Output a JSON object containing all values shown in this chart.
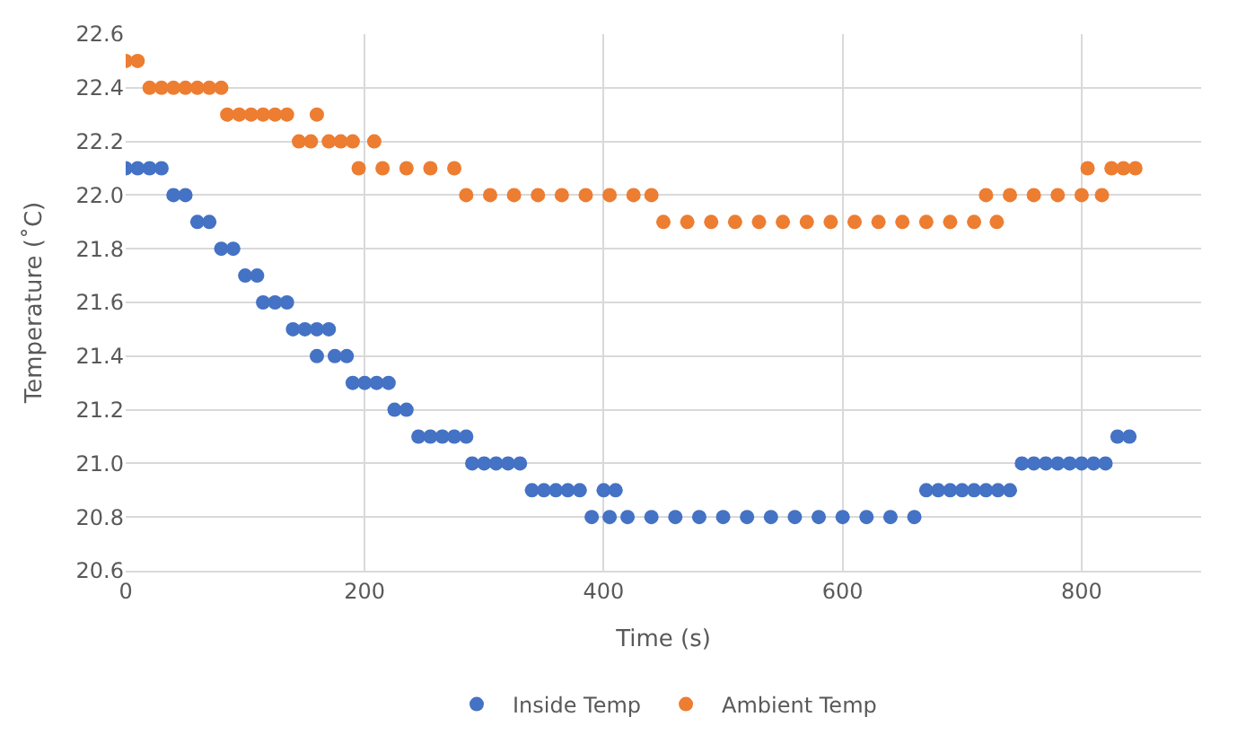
{
  "chart_data": {
    "type": "scatter",
    "xlabel": "Time (s)",
    "ylabel": "Temperature (˚C)",
    "xlim": [
      0,
      900
    ],
    "xticks": [
      0,
      200,
      400,
      600,
      800
    ],
    "ylim": [
      20.6,
      22.6
    ],
    "yticks": [
      20.6,
      20.8,
      {
        "value": 21,
        "label": "21.0"
      },
      21.2,
      21.4,
      21.6,
      21.8,
      {
        "value": 22,
        "label": "22.0"
      },
      22.2,
      22.4,
      22.6
    ],
    "grid": true,
    "legend": "bottom",
    "marker": "circle",
    "series": [
      {
        "name": "Inside Temp",
        "color": "#4472c4",
        "x": [
          0,
          10,
          20,
          30,
          40,
          50,
          60,
          70,
          80,
          90,
          100,
          110,
          115,
          125,
          135,
          140,
          150,
          160,
          170,
          160,
          175,
          185,
          190,
          200,
          210,
          220,
          225,
          235,
          245,
          255,
          265,
          275,
          285,
          290,
          300,
          310,
          320,
          330,
          340,
          350,
          360,
          370,
          380,
          400,
          410,
          390,
          405,
          420,
          440,
          460,
          480,
          500,
          520,
          540,
          560,
          580,
          600,
          620,
          640,
          660,
          670,
          680,
          690,
          700,
          710,
          720,
          730,
          740,
          750,
          760,
          770,
          780,
          790,
          800,
          810,
          820,
          830,
          840
        ],
        "values": [
          22.1,
          22.1,
          22.1,
          22.1,
          22.0,
          22.0,
          21.9,
          21.9,
          21.8,
          21.8,
          21.7,
          21.7,
          21.6,
          21.6,
          21.6,
          21.5,
          21.5,
          21.5,
          21.5,
          21.4,
          21.4,
          21.4,
          21.3,
          21.3,
          21.3,
          21.3,
          21.2,
          21.2,
          21.1,
          21.1,
          21.1,
          21.1,
          21.1,
          21.0,
          21.0,
          21.0,
          21.0,
          21.0,
          20.9,
          20.9,
          20.9,
          20.9,
          20.9,
          20.9,
          20.9,
          20.8,
          20.8,
          20.8,
          20.8,
          20.8,
          20.8,
          20.8,
          20.8,
          20.8,
          20.8,
          20.8,
          20.8,
          20.8,
          20.8,
          20.8,
          20.9,
          20.9,
          20.9,
          20.9,
          20.9,
          20.9,
          20.9,
          20.9,
          21.0,
          21.0,
          21.0,
          21.0,
          21.0,
          21.0,
          21.0,
          21.0,
          21.1,
          21.1
        ]
      },
      {
        "name": "Ambient Temp",
        "color": "#ed7d31",
        "x": [
          0,
          10,
          20,
          30,
          40,
          50,
          60,
          70,
          80,
          85,
          95,
          105,
          115,
          125,
          135,
          160,
          145,
          155,
          170,
          180,
          190,
          208,
          195,
          215,
          235,
          255,
          275,
          285,
          305,
          325,
          345,
          365,
          385,
          405,
          425,
          440,
          450,
          470,
          490,
          510,
          530,
          550,
          570,
          590,
          610,
          630,
          650,
          670,
          690,
          710,
          729,
          720,
          740,
          760,
          780,
          800,
          817,
          805,
          825,
          835,
          845
        ],
        "values": [
          22.5,
          22.5,
          22.4,
          22.4,
          22.4,
          22.4,
          22.4,
          22.4,
          22.4,
          22.3,
          22.3,
          22.3,
          22.3,
          22.3,
          22.3,
          22.3,
          22.2,
          22.2,
          22.2,
          22.2,
          22.2,
          22.2,
          22.1,
          22.1,
          22.1,
          22.1,
          22.1,
          22.0,
          22.0,
          22.0,
          22.0,
          22.0,
          22.0,
          22.0,
          22.0,
          22.0,
          21.9,
          21.9,
          21.9,
          21.9,
          21.9,
          21.9,
          21.9,
          21.9,
          21.9,
          21.9,
          21.9,
          21.9,
          21.9,
          21.9,
          21.9,
          22.0,
          22.0,
          22.0,
          22.0,
          22.0,
          22.0,
          22.1,
          22.1,
          22.1,
          22.1
        ]
      }
    ]
  }
}
